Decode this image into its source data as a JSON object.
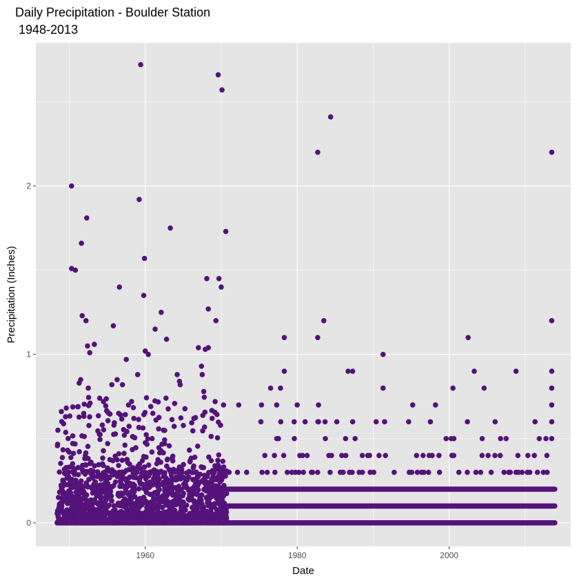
{
  "chart_data": {
    "type": "scatter",
    "title": "Daily Precipitation - Boulder Station",
    "subtitle": "1948-2013",
    "xlabel": "Date",
    "ylabel": "Precipitation (Inches)",
    "xlim": [
      1945.6,
      2016.0
    ],
    "ylim": [
      -0.14,
      2.85
    ],
    "x_ticks": [
      1960,
      1980,
      2000
    ],
    "x_tick_labels": [
      "1960",
      "1980",
      "2000"
    ],
    "y_ticks": [
      0,
      1,
      2
    ],
    "y_tick_labels": [
      "0",
      "1",
      "2"
    ],
    "grid": true,
    "panel_background": "#e5e5e5",
    "grid_color": "#ffffff",
    "point_color": "#54127a",
    "dense_rows": [
      {
        "y": 0.0,
        "x_range": [
          1948.4,
          2013.9
        ]
      },
      {
        "y": 0.1,
        "x_range": [
          1970.3,
          2013.9
        ]
      },
      {
        "y": 0.2,
        "x_range": [
          1970.3,
          2013.9
        ]
      }
    ],
    "dense_cloud": {
      "x_range": [
        1948.4,
        1970.8
      ],
      "y_range": [
        0.0,
        0.3
      ]
    },
    "points": [
      {
        "x": 1948.5,
        "y": 0.55
      },
      {
        "x": 1949.5,
        "y": 0.63
      },
      {
        "x": 1950.3,
        "y": 2.0
      },
      {
        "x": 1950.3,
        "y": 1.51
      },
      {
        "x": 1950.8,
        "y": 1.5
      },
      {
        "x": 1951.3,
        "y": 0.83
      },
      {
        "x": 1951.5,
        "y": 0.85
      },
      {
        "x": 1951.6,
        "y": 1.66
      },
      {
        "x": 1951.7,
        "y": 1.23
      },
      {
        "x": 1951.9,
        "y": 0.65
      },
      {
        "x": 1952.2,
        "y": 1.2
      },
      {
        "x": 1952.3,
        "y": 1.81
      },
      {
        "x": 1952.4,
        "y": 1.05
      },
      {
        "x": 1952.5,
        "y": 0.8
      },
      {
        "x": 1952.7,
        "y": 1.01
      },
      {
        "x": 1953.3,
        "y": 1.06
      },
      {
        "x": 1954.0,
        "y": 0.74
      },
      {
        "x": 1954.5,
        "y": 0.72
      },
      {
        "x": 1955.2,
        "y": 0.65
      },
      {
        "x": 1955.6,
        "y": 0.82
      },
      {
        "x": 1955.8,
        "y": 1.17
      },
      {
        "x": 1956.3,
        "y": 0.85
      },
      {
        "x": 1956.5,
        "y": 0.65
      },
      {
        "x": 1956.6,
        "y": 1.4
      },
      {
        "x": 1957.0,
        "y": 0.82
      },
      {
        "x": 1957.5,
        "y": 0.97
      },
      {
        "x": 1957.8,
        "y": 0.7
      },
      {
        "x": 1958.2,
        "y": 0.72
      },
      {
        "x": 1958.5,
        "y": 0.62
      },
      {
        "x": 1959.0,
        "y": 0.88
      },
      {
        "x": 1959.2,
        "y": 1.92
      },
      {
        "x": 1959.4,
        "y": 2.72
      },
      {
        "x": 1959.8,
        "y": 1.35
      },
      {
        "x": 1959.9,
        "y": 1.57
      },
      {
        "x": 1960.0,
        "y": 1.02
      },
      {
        "x": 1960.4,
        "y": 1.0
      },
      {
        "x": 1961.3,
        "y": 1.15
      },
      {
        "x": 1961.0,
        "y": 0.65
      },
      {
        "x": 1962.1,
        "y": 1.25
      },
      {
        "x": 1962.4,
        "y": 0.55
      },
      {
        "x": 1962.8,
        "y": 1.09
      },
      {
        "x": 1963.3,
        "y": 1.75
      },
      {
        "x": 1964.2,
        "y": 0.88
      },
      {
        "x": 1964.5,
        "y": 0.84
      },
      {
        "x": 1964.6,
        "y": 0.82
      },
      {
        "x": 1966.4,
        "y": 0.62
      },
      {
        "x": 1967.0,
        "y": 1.04
      },
      {
        "x": 1967.4,
        "y": 0.93
      },
      {
        "x": 1967.5,
        "y": 0.88
      },
      {
        "x": 1967.7,
        "y": 0.78
      },
      {
        "x": 1967.9,
        "y": 1.03
      },
      {
        "x": 1968.1,
        "y": 1.45
      },
      {
        "x": 1968.3,
        "y": 1.04
      },
      {
        "x": 1968.3,
        "y": 1.27
      },
      {
        "x": 1968.8,
        "y": 0.62
      },
      {
        "x": 1969.2,
        "y": 0.72
      },
      {
        "x": 1969.3,
        "y": 1.2
      },
      {
        "x": 1969.6,
        "y": 2.66
      },
      {
        "x": 1969.7,
        "y": 1.45
      },
      {
        "x": 1970.0,
        "y": 1.4
      },
      {
        "x": 1970.1,
        "y": 2.57
      },
      {
        "x": 1970.3,
        "y": 0.7
      },
      {
        "x": 1970.6,
        "y": 1.73
      },
      {
        "x": 1972.3,
        "y": 0.7
      },
      {
        "x": 1975.3,
        "y": 0.7
      },
      {
        "x": 1976.5,
        "y": 0.8
      },
      {
        "x": 1977.3,
        "y": 0.7
      },
      {
        "x": 1977.8,
        "y": 0.8
      },
      {
        "x": 1978.3,
        "y": 1.1
      },
      {
        "x": 1978.3,
        "y": 0.9
      },
      {
        "x": 1979.6,
        "y": 0.6
      },
      {
        "x": 1980.0,
        "y": 0.7
      },
      {
        "x": 1982.7,
        "y": 2.2
      },
      {
        "x": 1982.7,
        "y": 1.1
      },
      {
        "x": 1982.8,
        "y": 0.7
      },
      {
        "x": 1982.8,
        "y": 0.6
      },
      {
        "x": 1983.5,
        "y": 1.2
      },
      {
        "x": 1984.4,
        "y": 2.41
      },
      {
        "x": 1986.7,
        "y": 0.9
      },
      {
        "x": 1987.3,
        "y": 0.9
      },
      {
        "x": 1987.3,
        "y": 0.6
      },
      {
        "x": 1991.3,
        "y": 1.0
      },
      {
        "x": 1991.3,
        "y": 0.8
      },
      {
        "x": 1991.5,
        "y": 0.6
      },
      {
        "x": 1995.2,
        "y": 0.7
      },
      {
        "x": 1998.2,
        "y": 0.7
      },
      {
        "x": 2000.5,
        "y": 0.8
      },
      {
        "x": 2002.5,
        "y": 1.1
      },
      {
        "x": 2002.4,
        "y": 0.6
      },
      {
        "x": 2003.3,
        "y": 0.9
      },
      {
        "x": 2004.6,
        "y": 0.8
      },
      {
        "x": 2007.5,
        "y": 0.5
      },
      {
        "x": 2008.8,
        "y": 0.9
      },
      {
        "x": 2011.3,
        "y": 0.6
      },
      {
        "x": 2013.5,
        "y": 2.2
      },
      {
        "x": 2013.5,
        "y": 1.2
      },
      {
        "x": 2013.5,
        "y": 0.9
      },
      {
        "x": 2013.5,
        "y": 0.8
      },
      {
        "x": 2013.5,
        "y": 0.7
      },
      {
        "x": 2013.5,
        "y": 0.6
      },
      {
        "x": 2013.5,
        "y": 0.5
      }
    ]
  }
}
